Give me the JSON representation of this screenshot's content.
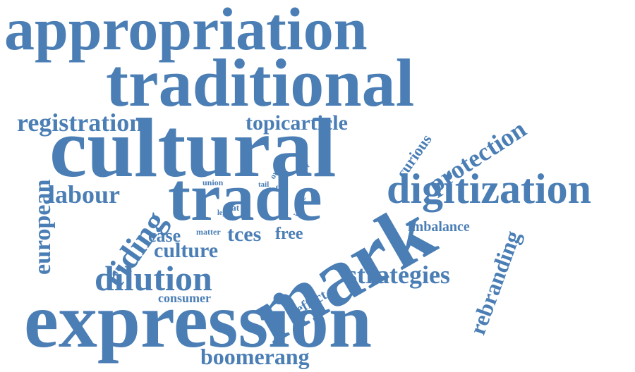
{
  "color": "#4a7eb5",
  "words": [
    "appropriation",
    "traditional",
    "cultural",
    "trade",
    "mark",
    "expression",
    "digitization",
    "registration",
    "topicarticle",
    "protection",
    "curious",
    "european",
    "labour",
    "riding",
    "union",
    "owner",
    "right",
    "tail",
    "eof",
    "coat",
    "legal",
    "image",
    "imbalance",
    "rebranding",
    "case",
    "matter",
    "tces",
    "free",
    "culture",
    "dilution",
    "strategies",
    "effect",
    "consumer",
    "boomerang"
  ]
}
